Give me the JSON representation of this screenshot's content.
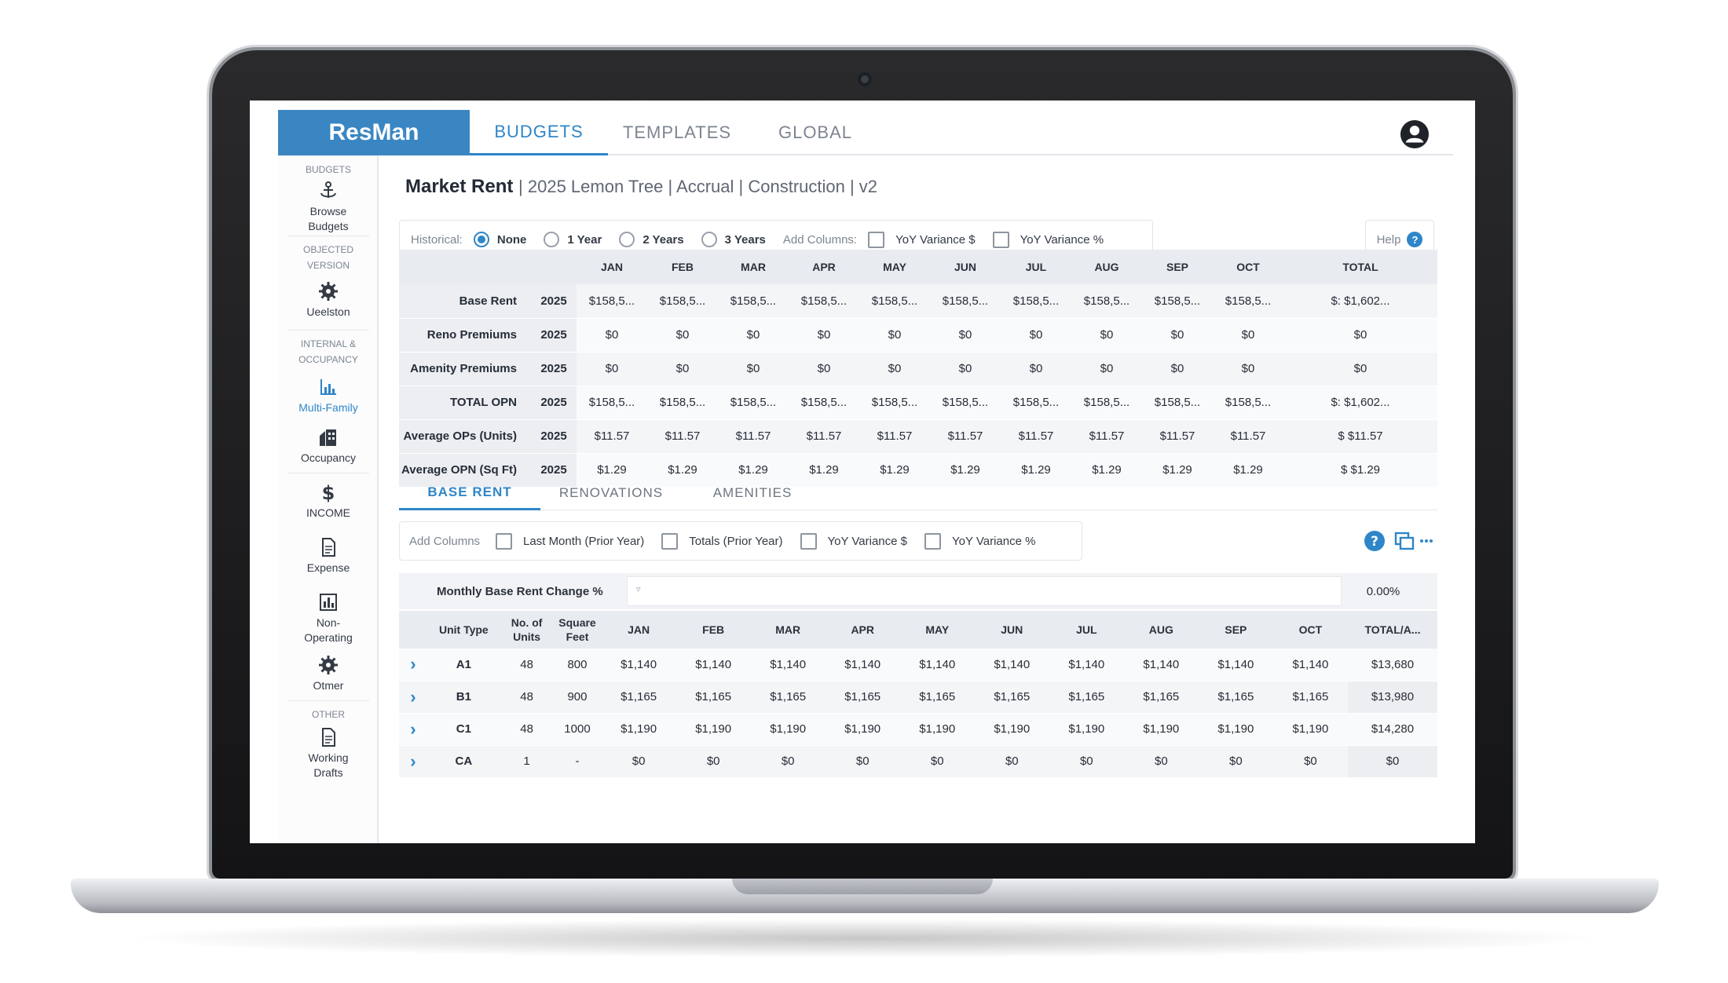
{
  "app": {
    "logo": "ResMan",
    "nav_tabs": [
      {
        "label": "BUDGETS",
        "active": true
      },
      {
        "label": "TEMPLATES",
        "active": false
      },
      {
        "label": "GLOBAL",
        "active": false
      }
    ],
    "user_icon": "user-circle-icon"
  },
  "sidebar": {
    "budgets_head": "BUDGETS",
    "browse": "Browse Budgets",
    "objected_head": "OBJECTED VERSION",
    "version": "Ueelston",
    "internal_head": "INTERNAL & OCCUPANCY",
    "multifamily": "Multi-Family",
    "occupancy": "Occupancy",
    "income": "INCOME",
    "expense": "Expense",
    "nonop": "Non-Operating",
    "other_item": "Otmer",
    "other_head": "OTHER",
    "drafts": "Working Drafts"
  },
  "page": {
    "title_strong": "Market Rent",
    "title_sub": "| 2025 Lemon Tree | Accrual | Construction | v2"
  },
  "historical_bar": {
    "label": "Historical:",
    "options": [
      "None",
      "1 Year",
      "2 Years",
      "3 Years"
    ],
    "selected": "None",
    "add_columns_label": "Add Columns:",
    "checks": [
      "YoY Variance $",
      "YoY Variance %"
    ],
    "help": "Help"
  },
  "summary": {
    "months": [
      "JAN",
      "FEB",
      "MAR",
      "APR",
      "MAY",
      "JUN",
      "JUL",
      "AUG",
      "SEP",
      "OCT"
    ],
    "total_label": "TOTAL",
    "rows": [
      {
        "label": "Base Rent",
        "year": "2025",
        "cells": [
          "$158,5...",
          "$158,5...",
          "$158,5...",
          "$158,5...",
          "$158,5...",
          "$158,5...",
          "$158,5...",
          "$158,5...",
          "$158,5...",
          "$158,5..."
        ],
        "total": "$: $1,602..."
      },
      {
        "label": "Reno Premiums",
        "year": "2025",
        "cells": [
          "$0",
          "$0",
          "$0",
          "$0",
          "$0",
          "$0",
          "$0",
          "$0",
          "$0",
          "$0"
        ],
        "total": "$0"
      },
      {
        "label": "Amenity Premiums",
        "year": "2025",
        "cells": [
          "$0",
          "$0",
          "$0",
          "$0",
          "$0",
          "$0",
          "$0",
          "$0",
          "$0",
          "$0"
        ],
        "total": "$0"
      },
      {
        "label": "TOTAL OPN",
        "year": "2025",
        "cells": [
          "$158,5...",
          "$158,5...",
          "$158,5...",
          "$158,5...",
          "$158,5...",
          "$158,5...",
          "$158,5...",
          "$158,5...",
          "$158,5...",
          "$158,5..."
        ],
        "total": "$: $1,602..."
      },
      {
        "label": "Average OPs (Units)",
        "year": "2025",
        "cells": [
          "$11.57",
          "$11.57",
          "$11.57",
          "$11.57",
          "$11.57",
          "$11.57",
          "$11.57",
          "$11.57",
          "$11.57",
          "$11.57"
        ],
        "total": "$ $11.57"
      },
      {
        "label": "Average OPN (Sq Ft)",
        "year": "2025",
        "cells": [
          "$1.29",
          "$1.29",
          "$1.29",
          "$1.29",
          "$1.29",
          "$1.29",
          "$1.29",
          "$1.29",
          "$1.29",
          "$1.29"
        ],
        "total": "$ $1.29"
      }
    ]
  },
  "subtabs": [
    {
      "label": "BASE RENT",
      "active": true
    },
    {
      "label": "RENOVATIONS",
      "active": false
    },
    {
      "label": "AMENITIES",
      "active": false
    }
  ],
  "columns_bar": {
    "label": "Add Columns",
    "checks": [
      "Last Month (Prior Year)",
      "Totals (Prior Year)",
      "YoY Variance $",
      "YoY Variance %"
    ]
  },
  "base_rent": {
    "change_label": "Monthly Base Rent Change %",
    "change_value": "0.00%",
    "headers": {
      "unit_type": "Unit Type",
      "units": "No. of Units",
      "sqft": "Square Feet",
      "total": "TOTAL/A..."
    },
    "months": [
      "JAN",
      "FEB",
      "MAR",
      "APR",
      "MAY",
      "JUN",
      "JUL",
      "AUG",
      "SEP",
      "OCT"
    ],
    "rows": [
      {
        "type": "A1",
        "units": "48",
        "sqft": "800",
        "cells": [
          "$1,140",
          "$1,140",
          "$1,140",
          "$1,140",
          "$1,140",
          "$1,140",
          "$1,140",
          "$1,140",
          "$1,140",
          "$1,140"
        ],
        "total": "$13,680"
      },
      {
        "type": "B1",
        "units": "48",
        "sqft": "900",
        "cells": [
          "$1,165",
          "$1,165",
          "$1,165",
          "$1,165",
          "$1,165",
          "$1,165",
          "$1,165",
          "$1,165",
          "$1,165",
          "$1,165"
        ],
        "total": "$13,980"
      },
      {
        "type": "C1",
        "units": "48",
        "sqft": "1000",
        "cells": [
          "$1,190",
          "$1,190",
          "$1,190",
          "$1,190",
          "$1,190",
          "$1,190",
          "$1,190",
          "$1,190",
          "$1,190",
          "$1,190"
        ],
        "total": "$14,280"
      },
      {
        "type": "CA",
        "units": "1",
        "sqft": "-",
        "cells": [
          "$0",
          "$0",
          "$0",
          "$0",
          "$0",
          "$0",
          "$0",
          "$0",
          "$0",
          "$0"
        ],
        "total": "$0"
      }
    ]
  },
  "colors": {
    "accent": "#2e86c8",
    "logo_bg": "#3a86c2"
  }
}
